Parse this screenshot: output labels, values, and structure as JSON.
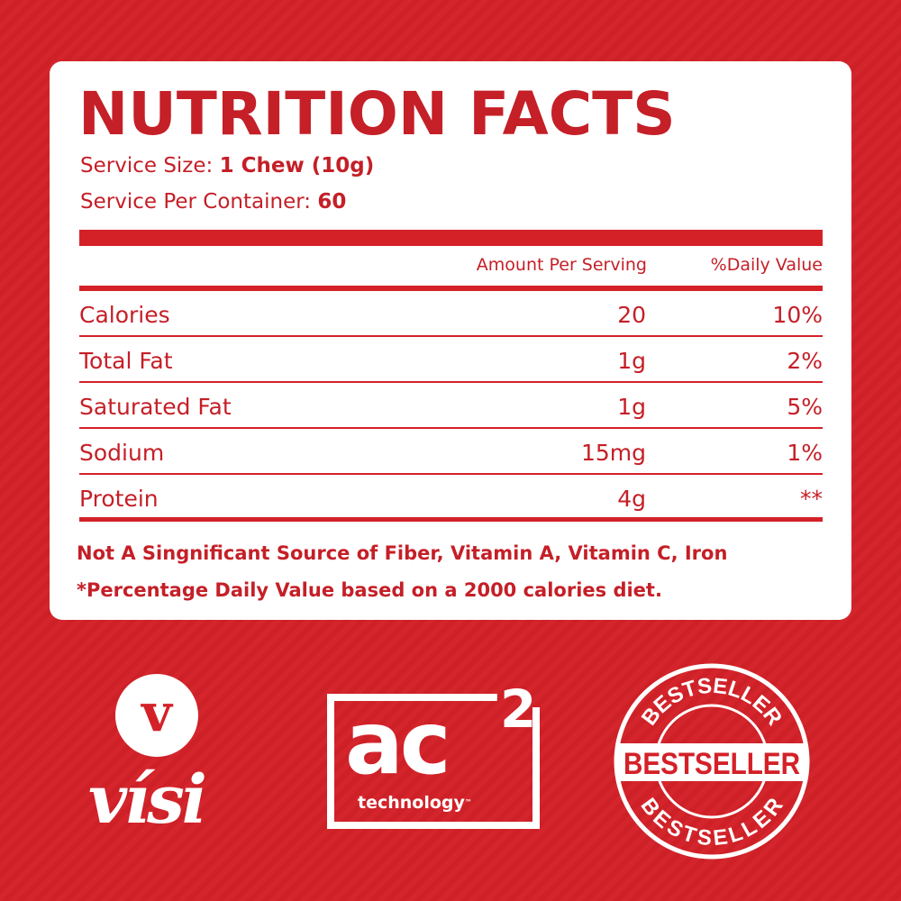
{
  "label": {
    "title": "NUTRITION FACTS",
    "serving_size_label": "Service Size:",
    "serving_size_value": "1 Chew (10g)",
    "servings_label": "Service Per Container:",
    "servings_value": "60",
    "columns": [
      "Amount Per Serving",
      "%Daily Value"
    ],
    "rows": [
      {
        "name": "Calories",
        "amount": "20",
        "dv": "10%"
      },
      {
        "name": "Total Fat",
        "amount": "1g",
        "dv": "2%"
      },
      {
        "name": "Saturated Fat",
        "amount": "1g",
        "dv": "5%"
      },
      {
        "name": "Sodium",
        "amount": "15mg",
        "dv": "1%"
      },
      {
        "name": "Protein",
        "amount": "4g",
        "dv": "**"
      }
    ],
    "footnotes": [
      "Not A Singnificant Source of Fiber, Vitamin A, Vitamin C, Iron",
      "*Percentage Daily Value based on a 2000 calories diet."
    ]
  },
  "logos": {
    "visi": {
      "mark": "v",
      "word": "vísi"
    },
    "ac2": {
      "main": "ac",
      "sup": "2",
      "sub": "technology",
      "tm": "™"
    },
    "stamp": {
      "top": "BESTSELLER",
      "center": "BESTSELLER",
      "bottom": "BESTSELLER"
    }
  },
  "colors": {
    "brand_red": "#d42128",
    "text_red": "#c51f27",
    "white": "#ffffff"
  }
}
